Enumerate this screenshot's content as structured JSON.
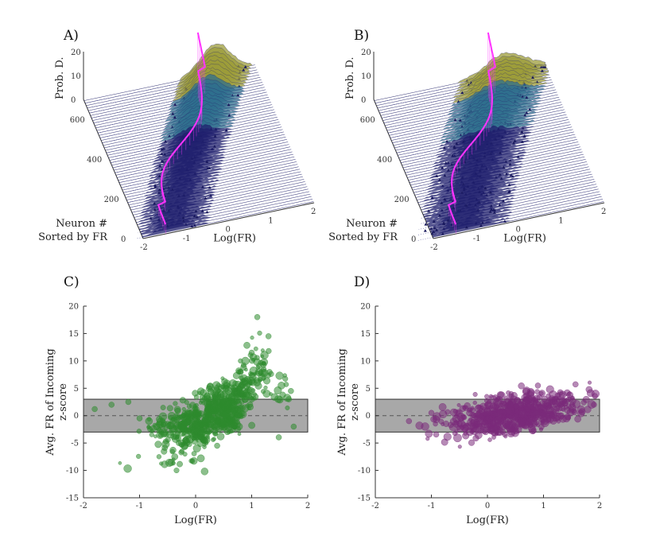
{
  "figure": {
    "panels": [
      {
        "id": "A",
        "label": "A)"
      },
      {
        "id": "B",
        "label": "B)"
      },
      {
        "id": "C",
        "label": "C)"
      },
      {
        "id": "D",
        "label": "D)"
      }
    ]
  },
  "colors": {
    "magenta": "#ff33ff",
    "surface_dark": "#1f1f6e",
    "surface_mid": "#2f6f8e",
    "surface_peak": "#9c9c3a",
    "green": "#2e8b2e",
    "purple": "#7a2a7a",
    "band": "#a8a8a8"
  },
  "chart_data": [
    {
      "id": "A",
      "type": "surface3d",
      "title": "",
      "xlabel": "Log(FR)",
      "ylabel_line1": "Neuron #",
      "ylabel_line2": "Sorted by FR",
      "zlabel": "Prob. D.",
      "x_ticks": [
        -2,
        -1,
        0,
        1,
        2
      ],
      "y_ticks": [
        0,
        200,
        400,
        600
      ],
      "z_ticks": [
        0,
        10,
        20
      ],
      "xlim": [
        -2,
        2
      ],
      "ylim": [
        0,
        700
      ],
      "zlim": [
        0,
        20
      ]
    },
    {
      "id": "B",
      "type": "surface3d",
      "title": "",
      "xlabel": "Log(FR)",
      "ylabel_line1": "Neuron #",
      "ylabel_line2": "Sorted by FR",
      "zlabel": "Prob. D.",
      "x_ticks": [
        -2,
        -1,
        0,
        1,
        2
      ],
      "y_ticks": [
        0,
        200,
        400,
        600
      ],
      "z_ticks": [
        0,
        10,
        20
      ],
      "xlim": [
        -2,
        2
      ],
      "ylim": [
        0,
        700
      ],
      "zlim": [
        0,
        20
      ]
    },
    {
      "id": "C",
      "type": "scatter",
      "xlabel": "Log(FR)",
      "ylabel_line1": "Avg. FR of Incoming",
      "ylabel_line2": "z-score",
      "xlim": [
        -2,
        2
      ],
      "ylim": [
        -15,
        20
      ],
      "x_ticks": [
        -2,
        -1,
        0,
        1,
        2
      ],
      "y_ticks": [
        -15,
        -10,
        -5,
        0,
        5,
        10,
        15,
        20
      ],
      "band": [
        -3,
        3
      ],
      "dashed_y": 0,
      "sample_points": [
        {
          "x": -1.8,
          "y": 1.2
        },
        {
          "x": -1.5,
          "y": 2.0
        },
        {
          "x": -1.2,
          "y": 2.5
        },
        {
          "x": -1.0,
          "y": -0.5
        },
        {
          "x": -0.6,
          "y": -2.0
        },
        {
          "x": -0.3,
          "y": -5.0
        },
        {
          "x": 0.0,
          "y": -3.0
        },
        {
          "x": 0.2,
          "y": 0.5
        },
        {
          "x": 0.5,
          "y": 2.5
        },
        {
          "x": 0.8,
          "y": 8.0
        },
        {
          "x": 1.0,
          "y": 11.5
        },
        {
          "x": 1.1,
          "y": 18.0
        },
        {
          "x": 1.3,
          "y": 14.5
        },
        {
          "x": 1.7,
          "y": 4.5
        },
        {
          "x": 1.75,
          "y": -2.0
        }
      ]
    },
    {
      "id": "D",
      "type": "scatter",
      "xlabel": "Log(FR)",
      "ylabel_line1": "Avg. FR of Incoming",
      "ylabel_line2": "z-score",
      "xlim": [
        -2,
        2
      ],
      "ylim": [
        -15,
        20
      ],
      "x_ticks": [
        -2,
        -1,
        0,
        1,
        2
      ],
      "y_ticks": [
        -15,
        -10,
        -5,
        0,
        5,
        10,
        15,
        20
      ],
      "band": [
        -3,
        3
      ],
      "dashed_y": 0,
      "sample_points": [
        {
          "x": -1.4,
          "y": -1.0
        },
        {
          "x": -1.0,
          "y": 0.5
        },
        {
          "x": -0.5,
          "y": -1.5
        },
        {
          "x": 0.0,
          "y": -2.5
        },
        {
          "x": 0.3,
          "y": 0.5
        },
        {
          "x": 0.6,
          "y": 2.0
        },
        {
          "x": 0.9,
          "y": 5.5
        },
        {
          "x": 1.2,
          "y": 3.0
        },
        {
          "x": 1.5,
          "y": 1.0
        },
        {
          "x": 1.9,
          "y": 2.0
        }
      ]
    }
  ]
}
